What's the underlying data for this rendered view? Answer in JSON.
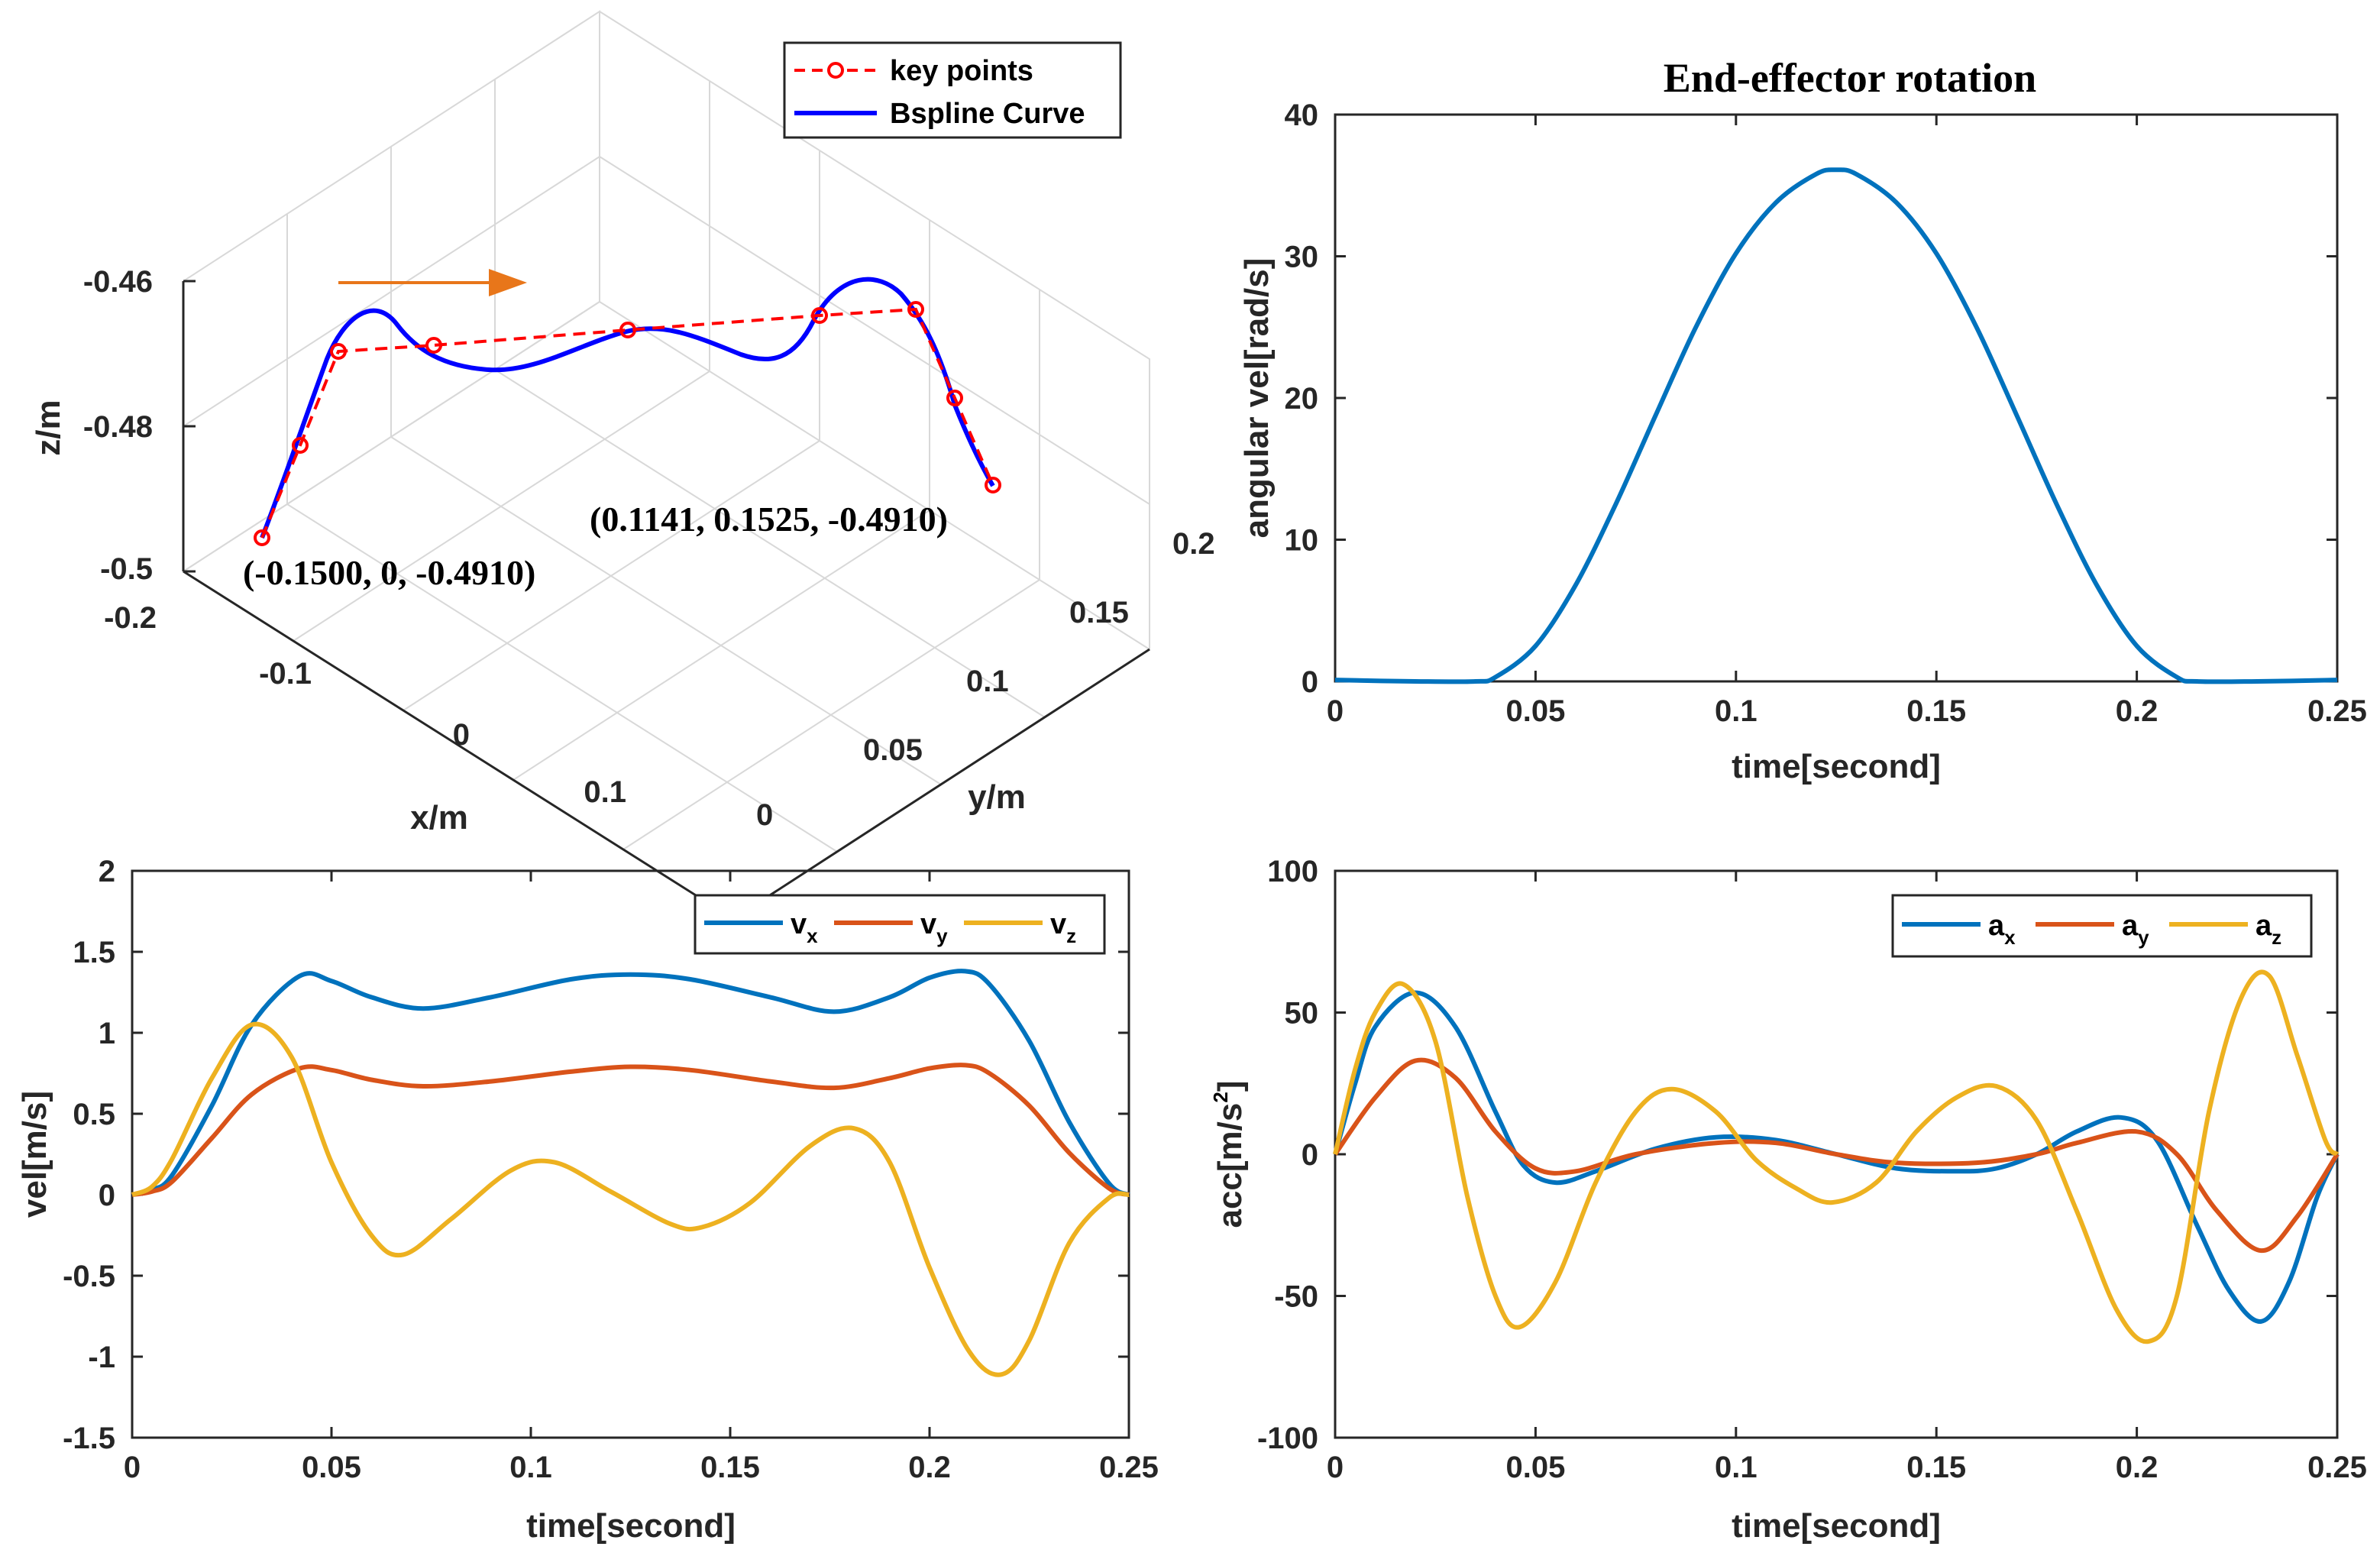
{
  "colors": {
    "blue": "#0072BD",
    "orange": "#D95319",
    "yellow": "#EDB120",
    "bspline": "#0000FF",
    "keypoints": "#FF0000",
    "arrow": "#E8761A"
  },
  "chart_data": [
    {
      "id": "path3d",
      "type": "line3d",
      "xlabel": "x/m",
      "ylabel": "y/m",
      "zlabel": "z/m",
      "xticks": [
        "-0.2",
        "-0.1",
        "0",
        "0.1"
      ],
      "yticks": [
        "0",
        "0.05",
        "0.1",
        "0.15",
        "0.2"
      ],
      "zticks": [
        "-0.46",
        "-0.48",
        "-0.5"
      ],
      "legend": [
        "key points",
        "Bspline Curve"
      ],
      "annotations": [
        "(-0.1500, 0, -0.4910)",
        "(0.1141, 0.1525, -0.4910)"
      ],
      "series": [
        {
          "name": "key points",
          "style": "dashed-circles"
        },
        {
          "name": "Bspline Curve",
          "style": "solid"
        }
      ]
    },
    {
      "id": "rotation",
      "type": "line",
      "title": "End-effector rotation",
      "xlabel": "time[second]",
      "ylabel": "angular vel[rad/s]",
      "xlim": [
        0,
        0.25
      ],
      "ylim": [
        0,
        40
      ],
      "xticks": [
        "0",
        "0.05",
        "0.1",
        "0.15",
        "0.2",
        "0.25"
      ],
      "yticks": [
        "0",
        "10",
        "20",
        "30",
        "40"
      ],
      "series": [
        {
          "name": "angular vel",
          "color": "#0072BD",
          "x": [
            0,
            0.02,
            0.035,
            0.04,
            0.05,
            0.06,
            0.07,
            0.08,
            0.09,
            0.1,
            0.11,
            0.12,
            0.125,
            0.13,
            0.14,
            0.15,
            0.16,
            0.17,
            0.18,
            0.19,
            0.2,
            0.21,
            0.215,
            0.23,
            0.25
          ],
          "y": [
            0.1,
            0,
            0,
            0.3,
            2.5,
            6.8,
            12.5,
            18.8,
            25,
            30.2,
            33.8,
            35.8,
            36.1,
            35.8,
            33.8,
            30.2,
            25,
            18.8,
            12.5,
            6.8,
            2.5,
            0.3,
            0,
            0,
            0.1
          ]
        }
      ]
    },
    {
      "id": "velocity",
      "type": "line",
      "xlabel": "time[second]",
      "ylabel": "vel[m/s]",
      "xlim": [
        0,
        0.25
      ],
      "ylim": [
        -1.5,
        2
      ],
      "xticks": [
        "0",
        "0.05",
        "0.1",
        "0.15",
        "0.2",
        "0.25"
      ],
      "yticks": [
        "-1.5",
        "-1",
        "-0.5",
        "0",
        "0.5",
        "1",
        "1.5",
        "2"
      ],
      "legend_labels": [
        "v",
        "v",
        "v"
      ],
      "legend_subs": [
        "x",
        "y",
        "z"
      ],
      "series": [
        {
          "name": "vx",
          "color": "#0072BD",
          "x": [
            0,
            0.005,
            0.01,
            0.02,
            0.03,
            0.042,
            0.05,
            0.06,
            0.073,
            0.09,
            0.11,
            0.125,
            0.14,
            0.16,
            0.176,
            0.19,
            0.2,
            0.209,
            0.215,
            0.225,
            0.235,
            0.245,
            0.25
          ],
          "y": [
            0,
            0.03,
            0.12,
            0.55,
            1.05,
            1.35,
            1.32,
            1.22,
            1.15,
            1.22,
            1.33,
            1.36,
            1.33,
            1.22,
            1.13,
            1.22,
            1.34,
            1.38,
            1.3,
            0.95,
            0.45,
            0.07,
            0
          ]
        },
        {
          "name": "vy",
          "color": "#D95319",
          "x": [
            0,
            0.005,
            0.01,
            0.02,
            0.03,
            0.042,
            0.05,
            0.06,
            0.073,
            0.09,
            0.11,
            0.125,
            0.14,
            0.16,
            0.176,
            0.19,
            0.2,
            0.209,
            0.215,
            0.225,
            0.235,
            0.245,
            0.25
          ],
          "y": [
            0,
            0.02,
            0.08,
            0.35,
            0.62,
            0.78,
            0.77,
            0.71,
            0.67,
            0.7,
            0.76,
            0.79,
            0.77,
            0.7,
            0.66,
            0.72,
            0.78,
            0.8,
            0.75,
            0.55,
            0.26,
            0.04,
            0
          ]
        },
        {
          "name": "vz",
          "color": "#EDB120",
          "x": [
            0,
            0.005,
            0.01,
            0.02,
            0.03,
            0.04,
            0.05,
            0.06,
            0.068,
            0.08,
            0.095,
            0.106,
            0.12,
            0.135,
            0.143,
            0.155,
            0.17,
            0.181,
            0.19,
            0.2,
            0.21,
            0.218,
            0.225,
            0.235,
            0.245,
            0.25
          ],
          "y": [
            0,
            0.05,
            0.22,
            0.72,
            1.05,
            0.85,
            0.2,
            -0.25,
            -0.37,
            -0.15,
            0.15,
            0.2,
            0.02,
            -0.18,
            -0.2,
            -0.05,
            0.3,
            0.41,
            0.2,
            -0.45,
            -0.97,
            -1.11,
            -0.9,
            -0.3,
            -0.02,
            0
          ]
        }
      ]
    },
    {
      "id": "acceleration",
      "type": "line",
      "xlabel": "time[second]",
      "ylabel": "acc[m/s",
      "ylabel_sup": "2",
      "ylabel_end": "]",
      "xlim": [
        0,
        0.25
      ],
      "ylim": [
        -100,
        100
      ],
      "xticks": [
        "0",
        "0.05",
        "0.1",
        "0.15",
        "0.2",
        "0.25"
      ],
      "yticks": [
        "-100",
        "-50",
        "0",
        "50",
        "100"
      ],
      "legend_labels": [
        "a",
        "a",
        "a"
      ],
      "legend_subs": [
        "x",
        "y",
        "z"
      ],
      "series": [
        {
          "name": "ax",
          "color": "#0072BD",
          "x": [
            0,
            0.005,
            0.01,
            0.02,
            0.03,
            0.04,
            0.047,
            0.055,
            0.065,
            0.08,
            0.095,
            0.11,
            0.125,
            0.14,
            0.155,
            0.165,
            0.175,
            0.185,
            0.196,
            0.205,
            0.215,
            0.223,
            0.231,
            0.238,
            0.245,
            0.25
          ],
          "y": [
            0,
            25,
            45,
            57,
            45,
            15,
            -4,
            -10,
            -6,
            2,
            6,
            5,
            0,
            -5,
            -6,
            -5,
            0,
            8,
            13,
            5,
            -25,
            -48,
            -59,
            -45,
            -15,
            0
          ]
        },
        {
          "name": "ay",
          "color": "#D95319",
          "x": [
            0,
            0.01,
            0.02,
            0.03,
            0.04,
            0.05,
            0.06,
            0.075,
            0.095,
            0.11,
            0.125,
            0.14,
            0.16,
            0.175,
            0.185,
            0.2,
            0.21,
            0.22,
            0.231,
            0.24,
            0.25
          ],
          "y": [
            0,
            20,
            33,
            27,
            8,
            -5,
            -6,
            0,
            4,
            4,
            0,
            -3,
            -3,
            0,
            4,
            8,
            0,
            -20,
            -34,
            -22,
            0
          ]
        },
        {
          "name": "az",
          "color": "#EDB120",
          "x": [
            0,
            0.005,
            0.01,
            0.017,
            0.025,
            0.033,
            0.04,
            0.046,
            0.055,
            0.065,
            0.075,
            0.084,
            0.095,
            0.105,
            0.115,
            0.124,
            0.135,
            0.145,
            0.155,
            0.165,
            0.175,
            0.185,
            0.195,
            0.203,
            0.21,
            0.218,
            0.226,
            0.233,
            0.24,
            0.247,
            0.25
          ],
          "y": [
            0,
            30,
            50,
            60,
            40,
            -15,
            -50,
            -61,
            -45,
            -10,
            15,
            23,
            15,
            -2,
            -12,
            -17,
            -10,
            8,
            20,
            24,
            12,
            -20,
            -55,
            -66,
            -50,
            15,
            55,
            63,
            35,
            5,
            0
          ]
        }
      ]
    }
  ]
}
